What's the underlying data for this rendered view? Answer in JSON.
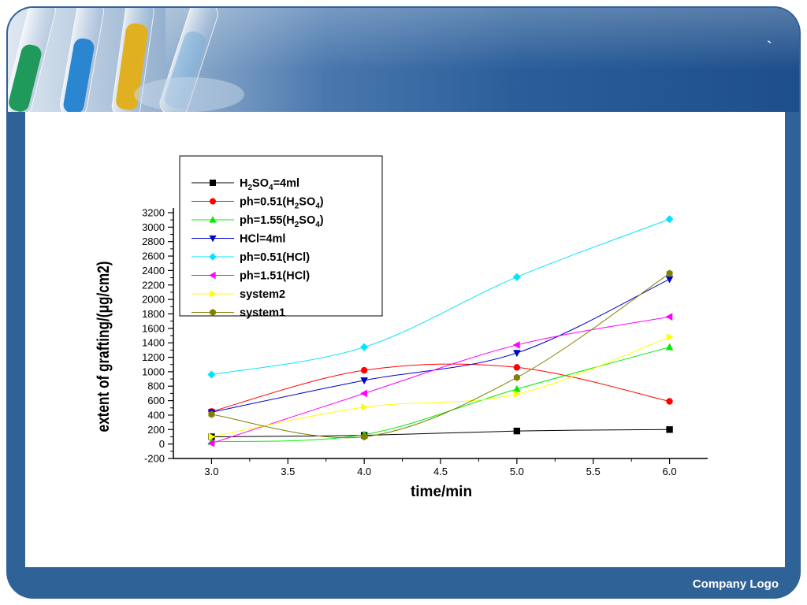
{
  "slide": {
    "corner_mark": "`",
    "company_logo": "Company Logo",
    "colors": {
      "frame": "#2f6398",
      "banner": "#1e4f8c",
      "content": "#ffffff"
    },
    "icons": [
      "test-tubes-icon"
    ]
  },
  "chart_data": {
    "type": "line",
    "title": "",
    "xlabel": "time/min",
    "ylabel": "extent of grafting/(μg/cm2)",
    "xlim": [
      2.75,
      6.25
    ],
    "ylim": [
      -200,
      3200
    ],
    "x_ticks": [
      "3.0",
      "3.5",
      "4.0",
      "4.5",
      "5.0",
      "5.5",
      "6.0"
    ],
    "y_ticks": [
      "-200",
      "0",
      "200",
      "400",
      "600",
      "800",
      "1000",
      "1200",
      "1400",
      "1600",
      "1800",
      "2000",
      "2200",
      "2400",
      "2600",
      "2800",
      "3000",
      "3200"
    ],
    "grid": false,
    "legend_position": "top-left",
    "x": [
      3.0,
      4.0,
      5.0,
      6.0
    ],
    "series": [
      {
        "name": "H2SO4=4ml",
        "legend": {
          "pre": "H",
          "s1": "2",
          "mid": "SO",
          "s2": "4",
          "post": "=4ml"
        },
        "color": "#000000",
        "marker": "square",
        "values": [
          100,
          120,
          180,
          200
        ]
      },
      {
        "name": "ph=0.51(H2SO4)",
        "legend": {
          "pre": "ph=0.51(H",
          "s1": "2",
          "mid": "SO",
          "s2": "4",
          "post": ")"
        },
        "color": "#ff0000",
        "marker": "circle",
        "values": [
          450,
          1020,
          1060,
          590
        ]
      },
      {
        "name": "ph=1.55(H2SO4)",
        "legend": {
          "pre": "ph=1.55(H",
          "s1": "2",
          "mid": "SO",
          "s2": "4",
          "post": ")"
        },
        "color": "#00ee00",
        "marker": "triangle-up",
        "values": [
          30,
          130,
          760,
          1340
        ]
      },
      {
        "name": "HCl=4ml",
        "legend": {
          "pre": "HCl=4ml",
          "s1": "",
          "mid": "",
          "s2": "",
          "post": ""
        },
        "color": "#0000cc",
        "marker": "triangle-down",
        "values": [
          440,
          880,
          1260,
          2280
        ]
      },
      {
        "name": "ph=0.51(HCl)",
        "legend": {
          "pre": "ph=0.51(HCl)",
          "s1": "",
          "mid": "",
          "s2": "",
          "post": ""
        },
        "color": "#00e5ff",
        "marker": "diamond",
        "values": [
          960,
          1340,
          2310,
          3110
        ]
      },
      {
        "name": "ph=1.51(HCl)",
        "legend": {
          "pre": "ph=1.51(HCl)",
          "s1": "",
          "mid": "",
          "s2": "",
          "post": ""
        },
        "color": "#ff00ff",
        "marker": "triangle-left",
        "values": [
          10,
          700,
          1370,
          1760
        ]
      },
      {
        "name": "system2",
        "legend": {
          "pre": "system2",
          "s1": "",
          "mid": "",
          "s2": "",
          "post": ""
        },
        "color": "#ffff00",
        "marker": "triangle-right",
        "values": [
          100,
          510,
          690,
          1480
        ]
      },
      {
        "name": "system1",
        "legend": {
          "pre": "system1",
          "s1": "",
          "mid": "",
          "s2": "",
          "post": ""
        },
        "color": "#808000",
        "marker": "hexagon",
        "values": [
          410,
          100,
          920,
          2360
        ]
      }
    ]
  }
}
